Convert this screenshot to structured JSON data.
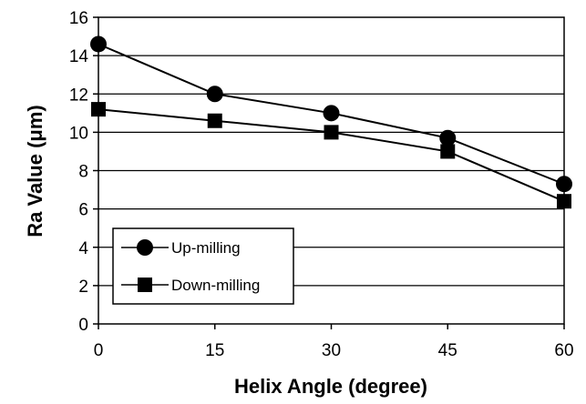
{
  "chart_data": {
    "type": "line",
    "xlabel": "Helix Angle (degree)",
    "ylabel": "Ra Value (μm)",
    "x": [
      0,
      15,
      30,
      45,
      60
    ],
    "xticks": [
      "0",
      "15",
      "30",
      "45",
      "60"
    ],
    "yticks": [
      "0",
      "2",
      "4",
      "6",
      "8",
      "10",
      "12",
      "14",
      "16"
    ],
    "xlim": [
      0,
      60
    ],
    "ylim": [
      0,
      16
    ],
    "grid": "horizontal",
    "legend_position": "bottom-left",
    "series": [
      {
        "name": "Up-milling",
        "marker": "circle",
        "values": [
          14.6,
          12.0,
          11.0,
          9.7,
          7.3
        ]
      },
      {
        "name": "Down-milling",
        "marker": "square",
        "values": [
          11.2,
          10.6,
          10.0,
          9.0,
          6.4
        ]
      }
    ],
    "colors": {
      "line": "#000000",
      "background": "#ffffff"
    }
  }
}
